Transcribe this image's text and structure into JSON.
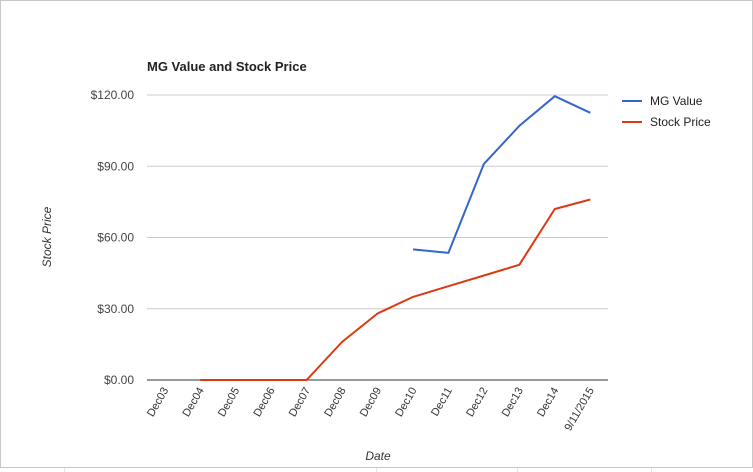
{
  "chart_data": {
    "type": "line",
    "title": "MG Value and Stock Price",
    "xlabel": "Date",
    "ylabel": "Stock Price",
    "categories": [
      "Dec03",
      "Dec04",
      "Dec05",
      "Dec06",
      "Dec07",
      "Dec08",
      "Dec09",
      "Dec10",
      "Dec11",
      "Dec12",
      "Dec13",
      "Dec14",
      "9/11/2015"
    ],
    "y_ticks": [
      "$0.00",
      "$30.00",
      "$60.00",
      "$90.00",
      "$120.00"
    ],
    "ylim": [
      0,
      120
    ],
    "grid": true,
    "legend_position": "right",
    "series": [
      {
        "name": "MG Value",
        "color": "#3366cc",
        "values": [
          null,
          null,
          null,
          null,
          null,
          null,
          null,
          55,
          53.5,
          91,
          107,
          119.5,
          112.5
        ]
      },
      {
        "name": "Stock Price",
        "color": "#dc3912",
        "values": [
          null,
          0,
          0,
          0,
          0,
          16,
          28,
          35,
          39.5,
          44,
          48.5,
          72,
          76
        ]
      }
    ]
  }
}
